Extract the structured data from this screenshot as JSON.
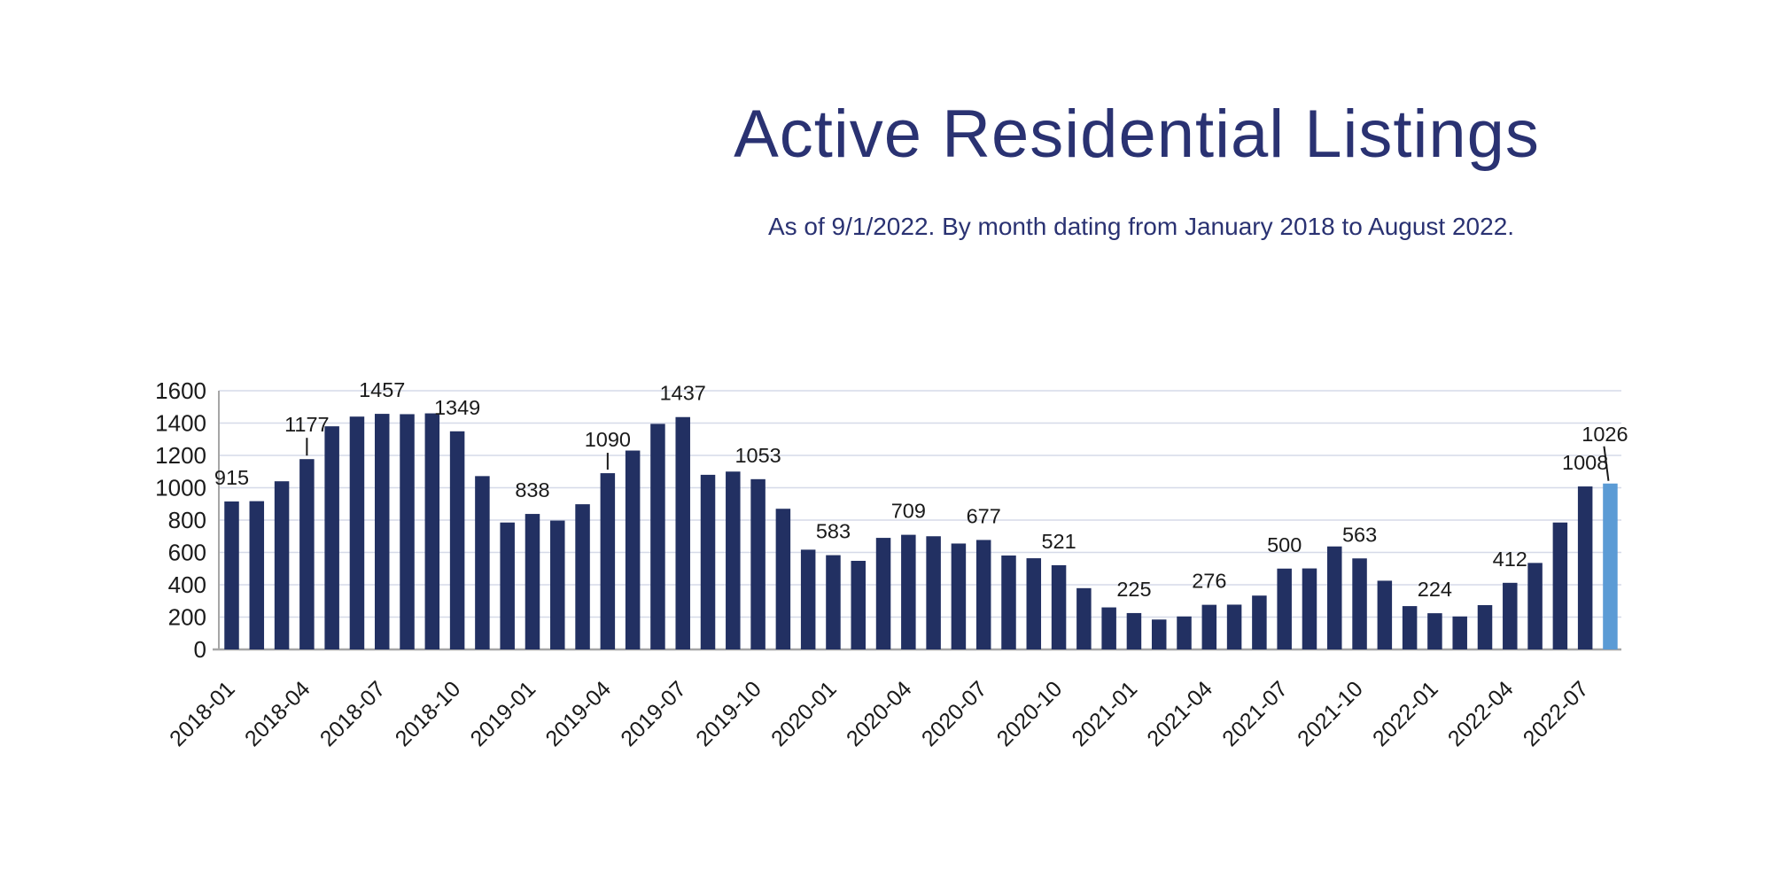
{
  "page": {
    "background": "#ffffff"
  },
  "header": {
    "title": "Active Residential Listings",
    "subtitle": "As of 9/1/2022. By month dating from January 2018 to August 2022.",
    "title_color": "#2A3272"
  },
  "chart_data": {
    "type": "bar",
    "title": "Active Residential Listings",
    "subtitle": "As of 9/1/2022. By month dating from January 2018 to August 2022.",
    "xlabel": "",
    "ylabel": "",
    "ylim": [
      0,
      1600
    ],
    "ytick_step": 200,
    "y_tick_labels": [
      "0",
      "200",
      "400",
      "600",
      "800",
      "1000",
      "1200",
      "1400",
      "1600"
    ],
    "grid": true,
    "legend": "none",
    "categories": [
      "2018-01",
      "2018-02",
      "2018-03",
      "2018-04",
      "2018-05",
      "2018-06",
      "2018-07",
      "2018-08",
      "2018-09",
      "2018-10",
      "2018-11",
      "2018-12",
      "2019-01",
      "2019-02",
      "2019-03",
      "2019-04",
      "2019-05",
      "2019-06",
      "2019-07",
      "2019-08",
      "2019-09",
      "2019-10",
      "2019-11",
      "2019-12",
      "2020-01",
      "2020-02",
      "2020-03",
      "2020-04",
      "2020-05",
      "2020-06",
      "2020-07",
      "2020-08",
      "2020-09",
      "2020-10",
      "2020-11",
      "2020-12",
      "2021-01",
      "2021-02",
      "2021-03",
      "2021-04",
      "2021-05",
      "2021-06",
      "2021-07",
      "2021-08",
      "2021-09",
      "2021-10",
      "2021-11",
      "2021-12",
      "2022-01",
      "2022-02",
      "2022-03",
      "2022-04",
      "2022-05",
      "2022-06",
      "2022-07",
      "2022-08"
    ],
    "values": [
      915,
      917,
      1040,
      1177,
      1380,
      1440,
      1457,
      1455,
      1460,
      1349,
      1072,
      785,
      838,
      797,
      898,
      1090,
      1230,
      1395,
      1437,
      1080,
      1100,
      1053,
      870,
      617,
      583,
      548,
      690,
      709,
      700,
      655,
      677,
      581,
      564,
      521,
      379,
      260,
      225,
      185,
      204,
      276,
      277,
      333,
      500,
      501,
      637,
      563,
      425,
      268,
      224,
      204,
      274,
      412,
      535,
      785,
      1008,
      1026
    ],
    "x_tick_labels": [
      "2018-01",
      "2018-04",
      "2018-07",
      "2018-10",
      "2019-01",
      "2019-04",
      "2019-07",
      "2019-10",
      "2020-01",
      "2020-04",
      "2020-07",
      "2020-10",
      "2021-01",
      "2021-04",
      "2021-07",
      "2021-10",
      "2022-01",
      "2022-04",
      "2022-07"
    ],
    "x_tick_indices": [
      0,
      3,
      6,
      9,
      12,
      15,
      18,
      21,
      24,
      27,
      30,
      33,
      36,
      39,
      42,
      45,
      48,
      51,
      54
    ],
    "value_label_indices": [
      0,
      3,
      6,
      9,
      12,
      15,
      18,
      21,
      24,
      27,
      30,
      33,
      36,
      39,
      42,
      45,
      48,
      51,
      54,
      55
    ],
    "raised_label_offsets": {
      "3": 31,
      "15": 30,
      "55": 48
    },
    "leader_line_indices": [
      3,
      15,
      55
    ],
    "highlight_index": 55,
    "colors": {
      "bar": "#223062",
      "highlight_bar": "#5B9BD5",
      "gridline": "#D6DAE8",
      "axis_line": "#A6A6A6",
      "tick_label": "#1A1A1A",
      "value_label": "#1A1A1A",
      "leader_line": "#1A1A1A"
    }
  }
}
